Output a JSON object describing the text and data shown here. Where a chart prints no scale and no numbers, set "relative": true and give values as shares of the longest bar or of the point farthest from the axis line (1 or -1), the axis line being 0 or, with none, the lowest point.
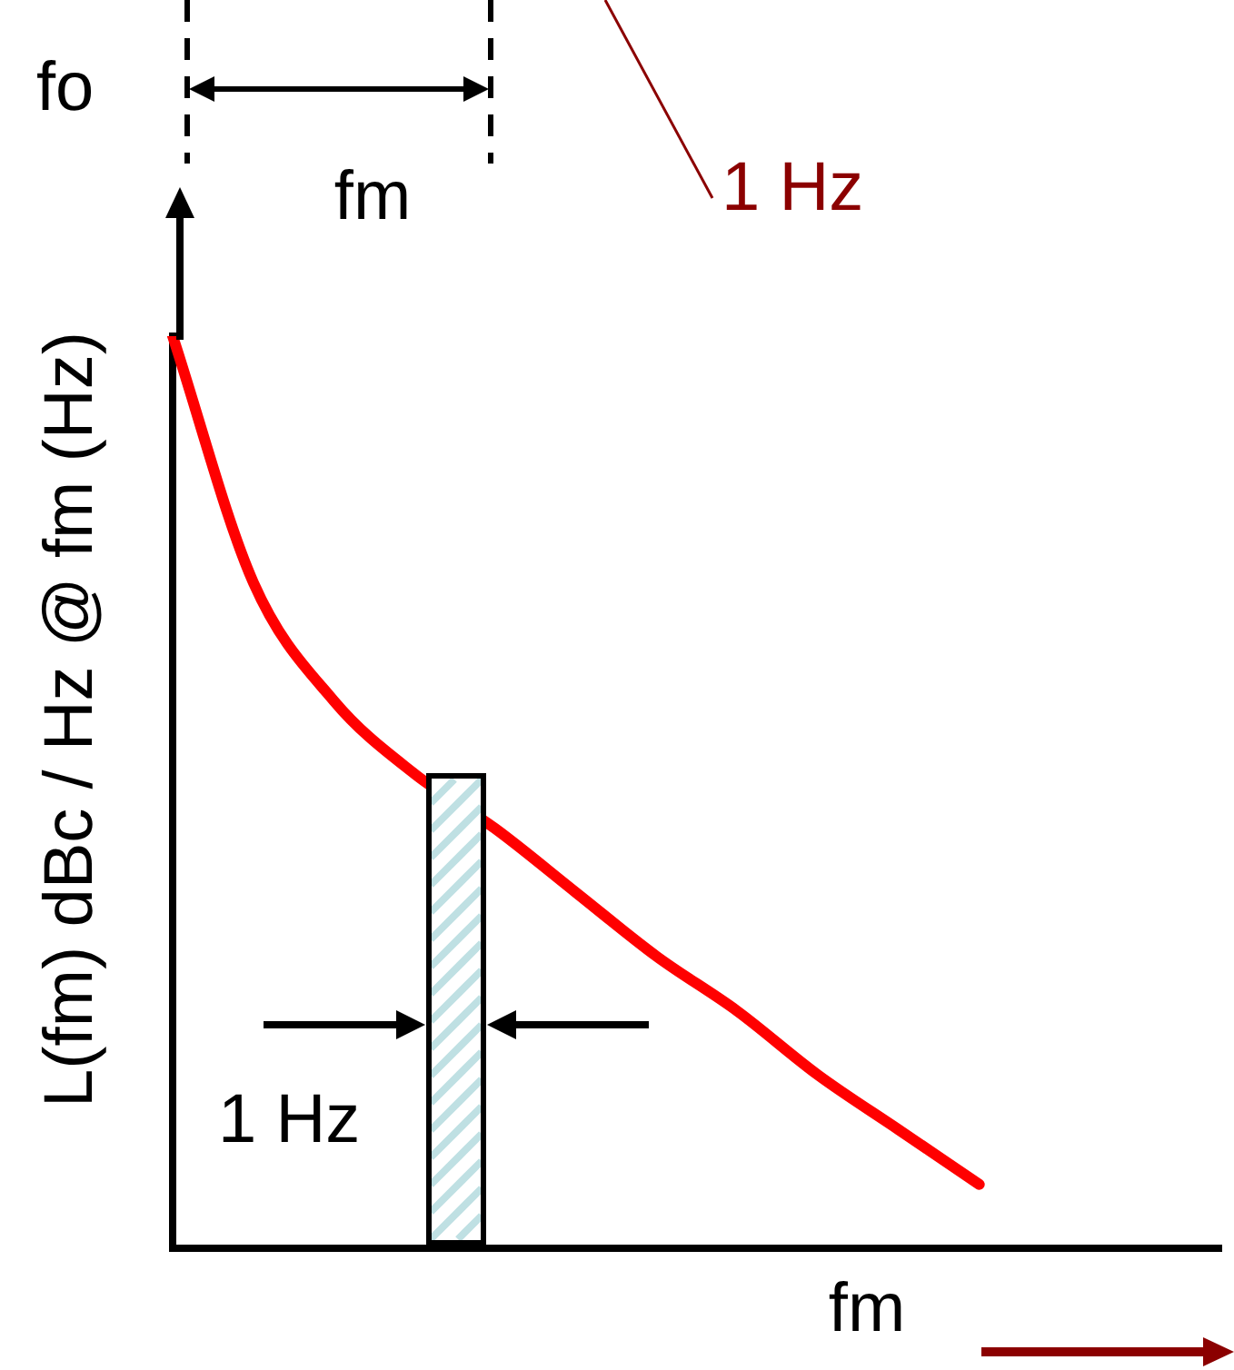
{
  "chart_data": {
    "type": "line",
    "relative": true,
    "ylabel": "L(fm) dBc / Hz @ fm (Hz)",
    "annotations": [
      "fo",
      "fm",
      "1 Hz",
      "1 Hz",
      "fm"
    ],
    "categories": [
      null,
      null,
      null,
      null,
      null,
      null,
      null,
      null,
      null,
      null,
      null,
      null,
      null,
      null
    ],
    "series": [
      {
        "color": "#ff0000",
        "values": [
          1.0,
          0.73,
          0.6,
          0.52,
          0.46,
          0.39,
          0.32,
          0.26,
          0.19,
          0.13,
          0.07,
          null,
          null,
          null
        ]
      }
    ],
    "grid": false,
    "legend": false,
    "marker": "none",
    "line_style": "solid"
  }
}
